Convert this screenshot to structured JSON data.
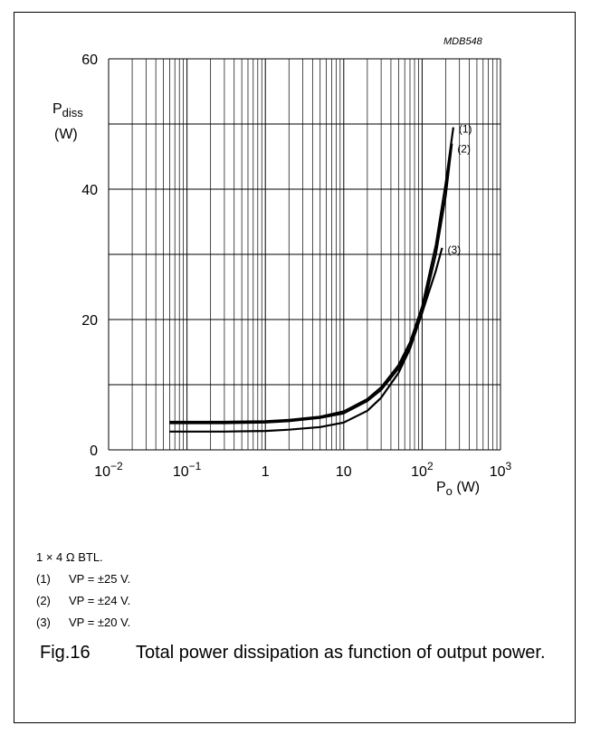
{
  "chart_data": {
    "type": "line",
    "code": "MDB548",
    "ylabel_main": "P",
    "ylabel_sub": "diss",
    "yunit": "(W)",
    "xlabel_main": "P",
    "xlabel_sub": "o",
    "xunit": "(W)",
    "xscale": "log",
    "xlim": [
      0.01,
      1000
    ],
    "ylim": [
      0,
      60
    ],
    "grid": true,
    "x_tick_labels": [
      "10−2",
      "10−1",
      "1",
      "10",
      "102",
      "103"
    ],
    "y_tick_labels": [
      "0",
      "20",
      "40",
      "60"
    ],
    "series": [
      {
        "name": "(1)",
        "x": [
          0.06,
          0.1,
          0.3,
          1,
          2,
          5,
          10,
          20,
          30,
          50,
          70,
          100,
          150,
          200,
          250
        ],
        "y": [
          4.3,
          4.3,
          4.3,
          4.4,
          4.6,
          5.1,
          5.9,
          7.8,
          9.6,
          13.0,
          16.5,
          22.0,
          31.5,
          41.0,
          49.5
        ]
      },
      {
        "name": "(2)",
        "x": [
          0.06,
          0.1,
          0.3,
          1,
          2,
          5,
          10,
          20,
          30,
          50,
          70,
          100,
          150,
          200,
          240
        ],
        "y": [
          4.1,
          4.1,
          4.1,
          4.2,
          4.4,
          4.9,
          5.6,
          7.5,
          9.2,
          12.5,
          15.8,
          21.0,
          30.0,
          39.0,
          47.0
        ]
      },
      {
        "name": "(3)",
        "x": [
          0.06,
          0.1,
          0.3,
          1,
          2,
          5,
          10,
          20,
          30,
          50,
          70,
          100,
          150,
          180
        ],
        "y": [
          2.8,
          2.8,
          2.8,
          2.9,
          3.1,
          3.5,
          4.2,
          6.0,
          8.0,
          11.8,
          15.5,
          21.0,
          27.5,
          31.0
        ]
      }
    ]
  },
  "notes": {
    "config": "1 × 4 Ω BTL.",
    "items": [
      {
        "num": "(1)",
        "text": "VP = ±25 V."
      },
      {
        "num": "(2)",
        "text": "VP = ±24 V."
      },
      {
        "num": "(3)",
        "text": "VP = ±20 V."
      }
    ]
  },
  "caption": {
    "fig": "Fig.16",
    "text": "Total power dissipation as function of output power."
  }
}
